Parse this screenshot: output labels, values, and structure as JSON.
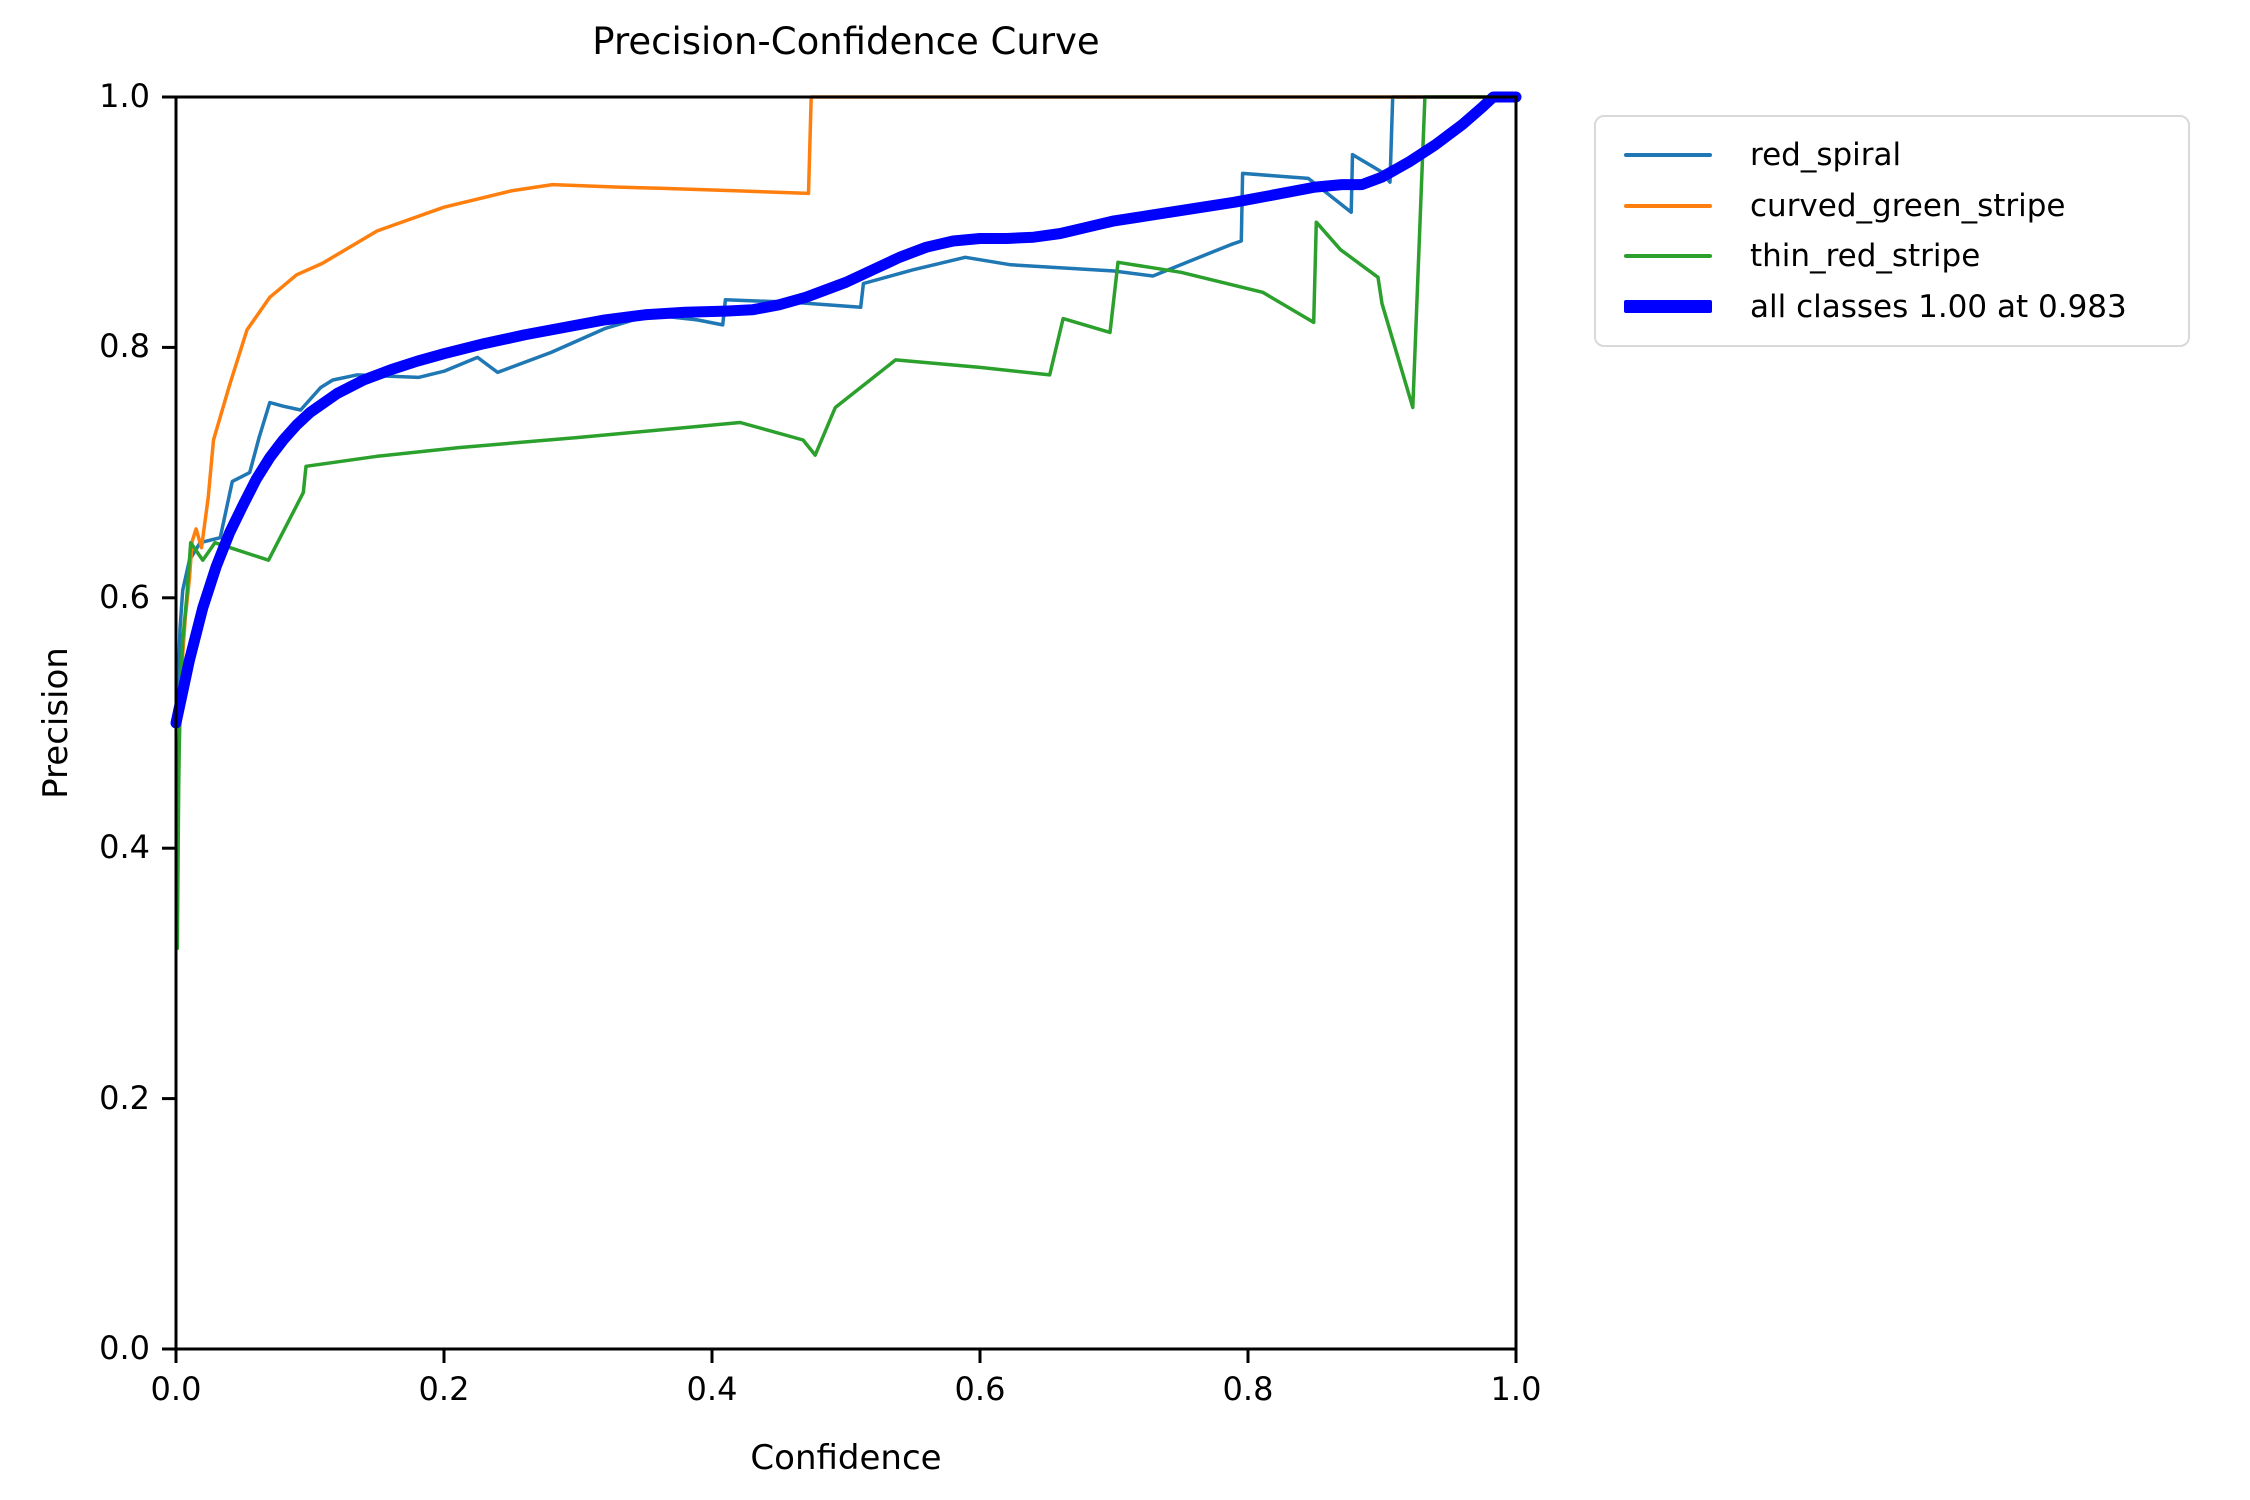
{
  "chart_data": {
    "type": "line",
    "title": "Precision-Confidence Curve",
    "xlabel": "Confidence",
    "ylabel": "Precision",
    "xlim": [
      0.0,
      1.0
    ],
    "ylim": [
      0.0,
      1.0
    ],
    "grid": false,
    "x_tick_labels": [
      "0.0",
      "0.2",
      "0.4",
      "0.6",
      "0.8",
      "1.0"
    ],
    "y_tick_labels": [
      "0.0",
      "0.2",
      "0.4",
      "0.6",
      "0.8",
      "1.0"
    ],
    "legend_position": "outside upper right",
    "axis_color": "#000000",
    "background_color": "#ffffff",
    "legend": [
      {
        "label": "red_spiral",
        "color": "#1f77b4",
        "thickness": "thin"
      },
      {
        "label": "curved_green_stripe",
        "color": "#ff7f0e",
        "thickness": "thin"
      },
      {
        "label": "thin_red_stripe",
        "color": "#2ca02c",
        "thickness": "thin"
      },
      {
        "label": "all classes 1.00 at 0.983",
        "color": "#0000ff",
        "thickness": "thick"
      }
    ],
    "series": [
      {
        "name": "red_spiral",
        "color": "#1f77b4",
        "line_width": 3.5,
        "points": [
          [
            0.001,
            0.5
          ],
          [
            0.003,
            0.575
          ],
          [
            0.005,
            0.606
          ],
          [
            0.01,
            0.63
          ],
          [
            0.018,
            0.644
          ],
          [
            0.033,
            0.648
          ],
          [
            0.042,
            0.693
          ],
          [
            0.055,
            0.7
          ],
          [
            0.062,
            0.728
          ],
          [
            0.07,
            0.756
          ],
          [
            0.08,
            0.753
          ],
          [
            0.093,
            0.75
          ],
          [
            0.108,
            0.768
          ],
          [
            0.117,
            0.774
          ],
          [
            0.135,
            0.778
          ],
          [
            0.181,
            0.776
          ],
          [
            0.2,
            0.781
          ],
          [
            0.225,
            0.792
          ],
          [
            0.24,
            0.78
          ],
          [
            0.28,
            0.796
          ],
          [
            0.32,
            0.815
          ],
          [
            0.354,
            0.826
          ],
          [
            0.389,
            0.822
          ],
          [
            0.408,
            0.818
          ],
          [
            0.41,
            0.838
          ],
          [
            0.46,
            0.836
          ],
          [
            0.511,
            0.832
          ],
          [
            0.513,
            0.851
          ],
          [
            0.55,
            0.862
          ],
          [
            0.589,
            0.872
          ],
          [
            0.623,
            0.866
          ],
          [
            0.7,
            0.861
          ],
          [
            0.729,
            0.857
          ],
          [
            0.787,
            0.882
          ],
          [
            0.795,
            0.885
          ],
          [
            0.796,
            0.939
          ],
          [
            0.845,
            0.935
          ],
          [
            0.877,
            0.908
          ],
          [
            0.878,
            0.954
          ],
          [
            0.9,
            0.94
          ],
          [
            0.906,
            0.932
          ],
          [
            0.908,
            1.0
          ],
          [
            1.0,
            1.0
          ]
        ]
      },
      {
        "name": "curved_green_stripe",
        "color": "#ff7f0e",
        "line_width": 3.5,
        "points": [
          [
            0.001,
            0.4
          ],
          [
            0.002,
            0.47
          ],
          [
            0.004,
            0.54
          ],
          [
            0.007,
            0.585
          ],
          [
            0.01,
            0.615
          ],
          [
            0.012,
            0.645
          ],
          [
            0.015,
            0.655
          ],
          [
            0.019,
            0.64
          ],
          [
            0.024,
            0.68
          ],
          [
            0.028,
            0.726
          ],
          [
            0.04,
            0.77
          ],
          [
            0.053,
            0.814
          ],
          [
            0.07,
            0.84
          ],
          [
            0.09,
            0.858
          ],
          [
            0.109,
            0.867
          ],
          [
            0.15,
            0.893
          ],
          [
            0.2,
            0.912
          ],
          [
            0.25,
            0.925
          ],
          [
            0.281,
            0.93
          ],
          [
            0.33,
            0.928
          ],
          [
            0.364,
            0.927
          ],
          [
            0.42,
            0.925
          ],
          [
            0.472,
            0.923
          ],
          [
            0.474,
            1.0
          ],
          [
            1.0,
            1.0
          ]
        ]
      },
      {
        "name": "thin_red_stripe",
        "color": "#2ca02c",
        "line_width": 3.5,
        "points": [
          [
            0.001,
            0.32
          ],
          [
            0.002,
            0.45
          ],
          [
            0.003,
            0.52
          ],
          [
            0.005,
            0.566
          ],
          [
            0.008,
            0.6
          ],
          [
            0.011,
            0.644
          ],
          [
            0.02,
            0.63
          ],
          [
            0.029,
            0.644
          ],
          [
            0.069,
            0.63
          ],
          [
            0.095,
            0.684
          ],
          [
            0.097,
            0.705
          ],
          [
            0.15,
            0.713
          ],
          [
            0.211,
            0.72
          ],
          [
            0.3,
            0.728
          ],
          [
            0.421,
            0.74
          ],
          [
            0.468,
            0.726
          ],
          [
            0.477,
            0.714
          ],
          [
            0.492,
            0.752
          ],
          [
            0.537,
            0.79
          ],
          [
            0.6,
            0.784
          ],
          [
            0.652,
            0.778
          ],
          [
            0.662,
            0.823
          ],
          [
            0.697,
            0.812
          ],
          [
            0.703,
            0.868
          ],
          [
            0.75,
            0.86
          ],
          [
            0.811,
            0.844
          ],
          [
            0.849,
            0.82
          ],
          [
            0.851,
            0.9
          ],
          [
            0.869,
            0.878
          ],
          [
            0.897,
            0.856
          ],
          [
            0.9,
            0.835
          ],
          [
            0.923,
            0.752
          ],
          [
            0.932,
            1.0
          ],
          [
            1.0,
            1.0
          ]
        ]
      },
      {
        "name": "all classes 1.00 at 0.983",
        "color": "#0000ff",
        "line_width": 11,
        "points": [
          [
            0.0,
            0.5
          ],
          [
            0.005,
            0.525
          ],
          [
            0.01,
            0.55
          ],
          [
            0.02,
            0.592
          ],
          [
            0.03,
            0.625
          ],
          [
            0.04,
            0.652
          ],
          [
            0.05,
            0.674
          ],
          [
            0.06,
            0.695
          ],
          [
            0.07,
            0.712
          ],
          [
            0.08,
            0.726
          ],
          [
            0.09,
            0.738
          ],
          [
            0.1,
            0.748
          ],
          [
            0.12,
            0.763
          ],
          [
            0.14,
            0.774
          ],
          [
            0.16,
            0.782
          ],
          [
            0.18,
            0.789
          ],
          [
            0.2,
            0.795
          ],
          [
            0.23,
            0.803
          ],
          [
            0.26,
            0.81
          ],
          [
            0.29,
            0.816
          ],
          [
            0.32,
            0.822
          ],
          [
            0.35,
            0.826
          ],
          [
            0.38,
            0.828
          ],
          [
            0.41,
            0.829
          ],
          [
            0.43,
            0.83
          ],
          [
            0.45,
            0.834
          ],
          [
            0.47,
            0.84
          ],
          [
            0.5,
            0.852
          ],
          [
            0.52,
            0.862
          ],
          [
            0.54,
            0.872
          ],
          [
            0.56,
            0.88
          ],
          [
            0.58,
            0.885
          ],
          [
            0.6,
            0.887
          ],
          [
            0.62,
            0.887
          ],
          [
            0.64,
            0.888
          ],
          [
            0.66,
            0.891
          ],
          [
            0.68,
            0.896
          ],
          [
            0.7,
            0.901
          ],
          [
            0.73,
            0.906
          ],
          [
            0.76,
            0.911
          ],
          [
            0.79,
            0.916
          ],
          [
            0.82,
            0.922
          ],
          [
            0.85,
            0.928
          ],
          [
            0.87,
            0.93
          ],
          [
            0.885,
            0.93
          ],
          [
            0.9,
            0.936
          ],
          [
            0.92,
            0.948
          ],
          [
            0.94,
            0.962
          ],
          [
            0.96,
            0.978
          ],
          [
            0.975,
            0.992
          ],
          [
            0.983,
            1.0
          ],
          [
            1.0,
            1.0
          ]
        ]
      }
    ]
  }
}
